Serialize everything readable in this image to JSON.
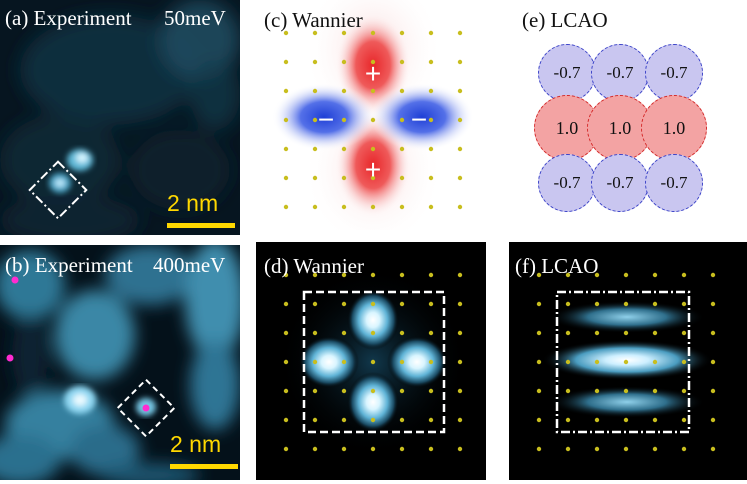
{
  "panels": {
    "a": {
      "title": "(a) Experiment",
      "energy": "50meV",
      "scale": "2 nm"
    },
    "b": {
      "title": "(b) Experiment",
      "energy": "400meV",
      "scale": "2 nm"
    },
    "c": {
      "title": "(c) Wannier",
      "plus": "+",
      "minus": "−"
    },
    "d": {
      "title": "(d) Wannier"
    },
    "e": {
      "title": "(e) LCAO",
      "coefficients": [
        [
          "-0.7",
          "-0.7",
          "-0.7"
        ],
        [
          "1.0",
          "1.0",
          "1.0"
        ],
        [
          "-0.7",
          "-0.7",
          "-0.7"
        ]
      ]
    },
    "f": {
      "title": "(f) LCAO"
    }
  },
  "colors": {
    "lattice_dot": "#c8be1e",
    "scale_bar": "#ffd800",
    "positive_lobe": "#e8272a",
    "negative_lobe": "#1f3fd6",
    "stm_glow": "#8fe0ff"
  },
  "icons": {
    "adatom_marker": "magenta-dot"
  }
}
